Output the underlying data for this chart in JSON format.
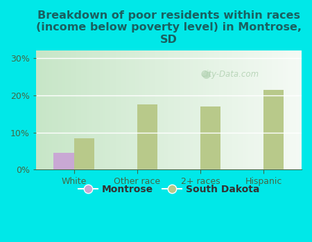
{
  "title": "Breakdown of poor residents within races\n(income below poverty level) in Montrose,\nSD",
  "categories": [
    "White",
    "Other race",
    "2+ races",
    "Hispanic"
  ],
  "montrose_values": [
    4.5,
    0,
    0,
    0
  ],
  "sd_values": [
    8.5,
    17.5,
    17.0,
    21.5
  ],
  "montrose_color": "#c9a8d4",
  "sd_color": "#b8c98a",
  "background_color": "#00e8e8",
  "plot_bg_left": "#c8e8c0",
  "plot_bg_right": "#f0f8f0",
  "ylim": [
    0,
    32
  ],
  "yticks": [
    0,
    10,
    20,
    30
  ],
  "ytick_labels": [
    "0%",
    "10%",
    "20%",
    "30%"
  ],
  "legend_labels": [
    "Montrose",
    "South Dakota"
  ],
  "watermark": "City-Data.com",
  "bar_width": 0.32,
  "title_fontsize": 11.5,
  "tick_fontsize": 9,
  "legend_fontsize": 10,
  "title_color": "#1a6060",
  "tick_color": "#446644",
  "grid_color": "#ffffff"
}
